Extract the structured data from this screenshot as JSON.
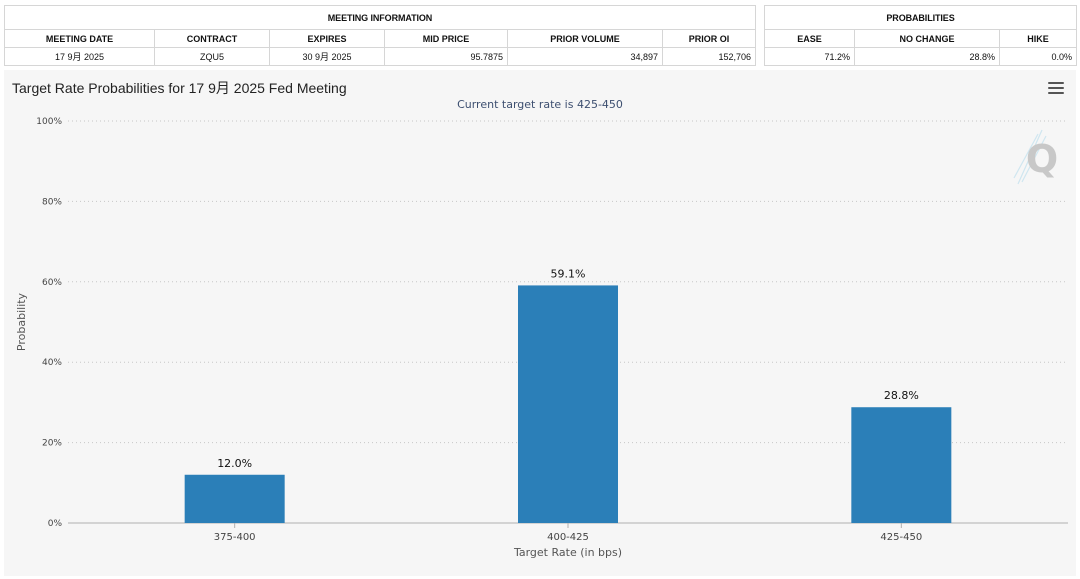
{
  "meeting_table": {
    "title": "MEETING INFORMATION",
    "columns": [
      "MEETING DATE",
      "CONTRACT",
      "EXPIRES",
      "MID PRICE",
      "PRIOR VOLUME",
      "PRIOR OI"
    ],
    "row": [
      "17 9月 2025",
      "ZQU5",
      "30 9月 2025",
      "95.7875",
      "34,897",
      "152,706"
    ]
  },
  "prob_table": {
    "title": "PROBABILITIES",
    "columns": [
      "EASE",
      "NO CHANGE",
      "HIKE"
    ],
    "row": [
      "71.2%",
      "28.8%",
      "0.0%"
    ]
  },
  "chart_data": {
    "type": "bar",
    "title": "Target Rate Probabilities for 17 9月 2025 Fed Meeting",
    "subtitle": "Current target rate is 425-450",
    "categories": [
      "375-400",
      "400-425",
      "425-450"
    ],
    "values": [
      12.0,
      59.1,
      28.8
    ],
    "data_labels": [
      "12.0%",
      "59.1%",
      "28.8%"
    ],
    "xlabel": "Target Rate (in bps)",
    "ylabel": "Probability",
    "ylim": [
      0,
      100
    ],
    "yticks": [
      "0%",
      "20%",
      "40%",
      "60%",
      "80%",
      "100%"
    ],
    "ytick_values": [
      0,
      20,
      40,
      60,
      80,
      100
    ],
    "grid": true,
    "bar_color": "#2b7fb8",
    "grid_color": "#c7c7c7"
  }
}
